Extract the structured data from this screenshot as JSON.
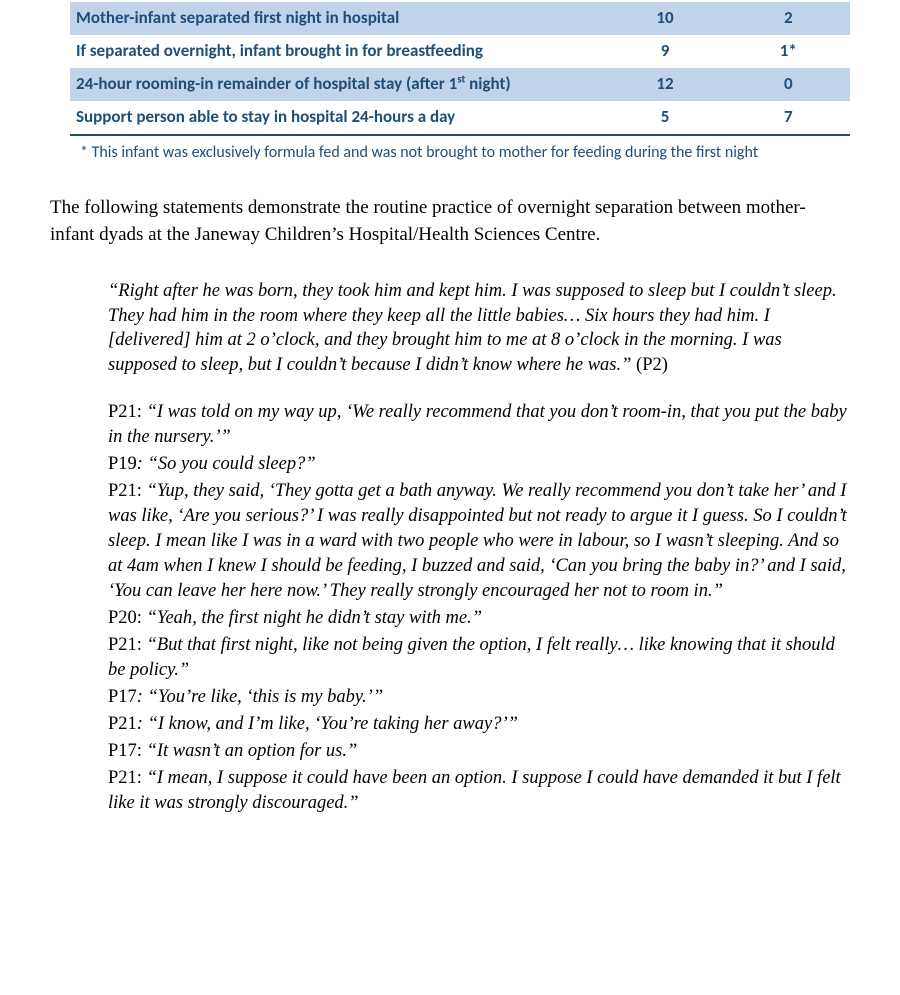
{
  "table": {
    "rows": [
      {
        "label": "Mother-infant separated first night in hospital",
        "v1": "10",
        "v2": "2",
        "band": true
      },
      {
        "label": "If separated overnight, infant brought in for breastfeeding",
        "v1": "9",
        "v2": "1*",
        "band": false
      },
      {
        "label_html": "24-hour rooming-in remainder of hospital stay (after 1<sup>st</sup> night)",
        "label": "24-hour rooming-in remainder of hospital stay (after 1st night)",
        "v1": "12",
        "v2": "0",
        "band": true
      },
      {
        "label": "Support person able to stay in hospital 24-hours a day",
        "v1": "5",
        "v2": "7",
        "band": false,
        "last": true
      }
    ],
    "footnote": "* This infant was exclusively formula fed and was not brought to mother for feeding during the first night",
    "colors": {
      "text": "#1f4e79",
      "band_bg": "#c0d3eb",
      "border": "#1f4e79"
    },
    "font": {
      "family": "Calibri",
      "size_pt": 12.5,
      "weight": "bold"
    }
  },
  "intro": "The following statements demonstrate the routine practice of overnight separation between mother-infant dyads at the Janeway Children’s Hospital/Health Sciences Centre.",
  "quotes": [
    {
      "type": "block",
      "quote": "“Right after he was born, they took him and kept him. I was supposed to sleep but I couldn’t sleep. They had him in the room where they keep all the little babies… Six hours they had him. I [delivered] him at 2 o’clock, and they brought him to me at 8 o’clock in the morning.  I was supposed to sleep, but I couldn’t because I didn’t know where he was.”",
      "attr": " (P2)"
    },
    {
      "type": "spacer"
    },
    {
      "type": "line",
      "speaker": "P21",
      "sep": ": ",
      "quote": "“I was told on my way up, ‘We really recommend that you don’t room-in, that you put the baby in the nursery.’”"
    },
    {
      "type": "line",
      "speaker": "P19",
      "sep_italic": ": ",
      "quote": "“So you could sleep?”"
    },
    {
      "type": "line",
      "speaker": "P21",
      "sep": ": ",
      "quote": "“Yup, they said, ‘They gotta get a bath anyway. We really recommend you don’t take her’ and I was like, ‘Are you serious?’ I was really disappointed but not ready to argue it I guess. So I couldn’t sleep.  I mean like I was in a ward with two people who were in labour, so I wasn’t sleeping. And so at 4am when I knew I should be feeding, I buzzed and said, ‘Can you bring the baby in?’ and I said, ‘You can leave her here now.’ They really strongly encouraged her not to room in.”"
    },
    {
      "type": "line",
      "speaker": "P20",
      "sep": ": ",
      "quote": "“Yeah, the first night he didn’t stay with me.”"
    },
    {
      "type": "line",
      "speaker": "P21",
      "sep": ": ",
      "quote": "“But that first night, like not being given the option, I felt really… like knowing that it should be policy.”"
    },
    {
      "type": "line",
      "speaker": "P17",
      "sep_italic": ": ",
      "quote": "“You’re like, ‘this is my baby.’”"
    },
    {
      "type": "line",
      "speaker": "P21",
      "sep_italic": ": ",
      "quote": "“I know, and I’m like, ‘You’re taking her away?’”"
    },
    {
      "type": "line",
      "speaker": "P17",
      "sep": ": ",
      "quote": "“It wasn’t an option for us.”"
    },
    {
      "type": "line",
      "speaker": "P21",
      "sep": ": ",
      "quote": "“I mean, I suppose it could have been an option. I suppose I could have demanded it but I felt like it was strongly discouraged.”"
    }
  ],
  "body_font": {
    "family": "Times New Roman",
    "size_pt": 14
  }
}
